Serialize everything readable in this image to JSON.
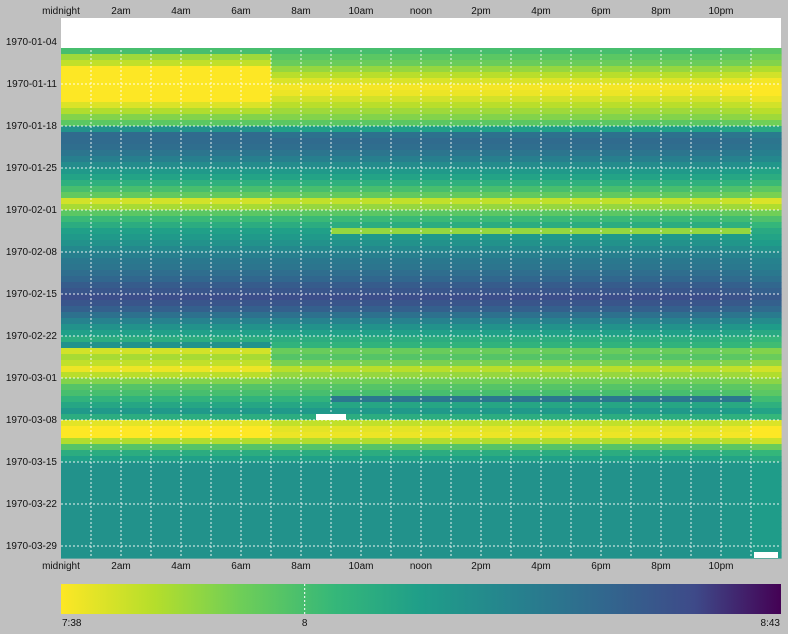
{
  "chart_data": {
    "type": "heatmap",
    "title": "",
    "x_tick_labels": [
      "midnight",
      "2am",
      "4am",
      "6am",
      "8am",
      "10am",
      "noon",
      "2pm",
      "4pm",
      "6pm",
      "8pm",
      "10pm"
    ],
    "y_tick_labels": [
      "1970-01-04",
      "1970-01-11",
      "1970-01-18",
      "1970-01-25",
      "1970-02-01",
      "1970-02-08",
      "1970-02-15",
      "1970-02-22",
      "1970-03-01",
      "1970-03-08",
      "1970-03-15",
      "1970-03-22",
      "1970-03-29"
    ],
    "x_axis_repeated_bottom": true,
    "grid": true,
    "colorscale": "viridis (reversed: low = yellow, high = purple)",
    "colorbar": {
      "labels": [
        "7:38",
        "8",
        "8:43"
      ],
      "min_minutes": 458,
      "mid_minutes": 480,
      "max_minutes": 523
    },
    "date_range": [
      "1970-01-09",
      "1970-03-31"
    ],
    "missing_data_bands": [
      "1970-01-04 to 1970-01-08 (entire day)",
      "1970-03-09 around 09:00 (short gap)",
      "1970-03-31 around 23:00 (short gap)"
    ],
    "daily_values_minutes": [
      480,
      477,
      475,
      470,
      466,
      462,
      459,
      460,
      463,
      466,
      469,
      472,
      477,
      490,
      504,
      506,
      505,
      503,
      500,
      496,
      492,
      489,
      485,
      480,
      476,
      465,
      470,
      477,
      482,
      486,
      490,
      492,
      494,
      497,
      500,
      502,
      503,
      505,
      507,
      510,
      512,
      514,
      512,
      509,
      504,
      499,
      494,
      490,
      486,
      484,
      475,
      478,
      473,
      466,
      470,
      474,
      478,
      480,
      484,
      488,
      492,
      486,
      465,
      461,
      460,
      467,
      478,
      486,
      490,
      494
    ],
    "morning_offsets_minutes": [
      0,
      -8,
      -10,
      -12,
      -10,
      -8,
      -10,
      -8,
      -6,
      -4,
      -2,
      0,
      0,
      4,
      2,
      0,
      0,
      0,
      0,
      0,
      0,
      0,
      0,
      0,
      0,
      -2,
      -2,
      0,
      0,
      0,
      0,
      0,
      0,
      0,
      0,
      0,
      0,
      0,
      0,
      0,
      0,
      0,
      0,
      0,
      0,
      0,
      0,
      0,
      0,
      10,
      -12,
      -10,
      -8,
      -6,
      -4,
      -2,
      0,
      0,
      0,
      0,
      0,
      0,
      -4,
      -3,
      -2,
      0,
      0,
      0,
      0,
      0
    ]
  }
}
